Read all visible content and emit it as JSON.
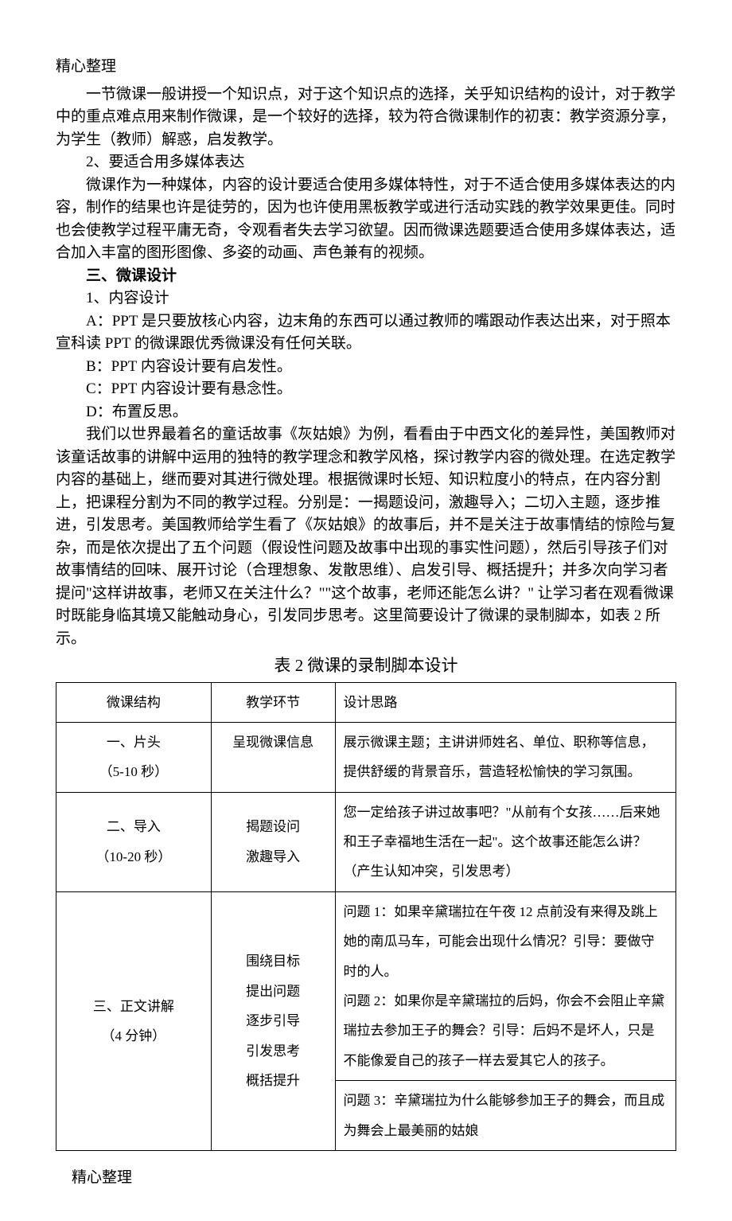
{
  "header": "精心整理",
  "footer": "精心整理",
  "paragraphs": {
    "p1": "一节微课一般讲授一个知识点，对于这个知识点的选择，关乎知识结构的设计，对于教学中的重点难点用来制作微课，是一个较好的选择，较为符合微课制作的初衷：教学资源分享，为学生（教师）解惑，启发教学。",
    "p2": "2、要适合用多媒体表达",
    "p3": "微课作为一种媒体，内容的设计要适合使用多媒体特性，对于不适合使用多媒体表达的内容，制作的结果也许是徒劳的，因为也许使用黑板教学或进行活动实践的教学效果更佳。同时也会使教学过程平庸无奇，令观看者失去学习欲望。因而微课选题要适合使用多媒体表达，适合加入丰富的图形图像、多姿的动画、声色兼有的视频。",
    "h3": "三、微课设计",
    "p4": "1、内容设计",
    "p5": "A：PPT 是只要放核心内容，边末角的东西可以通过教师的嘴跟动作表达出来，对于照本宣科读 PPT 的微课跟优秀微课没有任何关联。",
    "p6": "B：PPT 内容设计要有启发性。",
    "p7": "C：PPT 内容设计要有悬念性。",
    "p8": "D：布置反思。",
    "p9": "我们以世界最着名的童话故事《灰姑娘》为例，看看由于中西文化的差异性，美国教师对该童话故事的讲解中运用的独特的教学理念和教学风格，探讨教学内容的微处理。在选定教学内容的基础上，继而要对其进行微处理。根据微课时长短、知识粒度小的特点，在内容分割上，把课程分割为不同的教学过程。分别是：一揭题设问，激趣导入；二切入主题，逐步推进，引发思考。美国教师给学生看了《灰姑娘》的故事后，并不是关注于故事情结的惊险与复杂，而是依次提出了五个问题（假设性问题及故事中出现的事实性问题），然后引导孩子们对故事情结的回味、展开讨论（合理想象、发散思维）、启发引导、概括提升；并多次向学习者提问\"这样讲故事，老师又在关注什么？\"\"这个故事，老师还能怎么讲？\" 让学习者在观看微课时既能身临其境又能触动身心，引发同步思考。这里简要设计了微课的录制脚本，如表 2 所示。",
    "tableTitle": "表 2 微课的录制脚本设计"
  },
  "table": {
    "headers": [
      "微课结构",
      "教学环节",
      "设计思路"
    ],
    "rows": [
      {
        "c1": "一、片头\n（5-10 秒）",
        "c2": "呈现微课信息",
        "c3": "展示微课主题；主讲讲师姓名、单位、职称等信息，提供舒缓的背景音乐，营造轻松愉快的学习氛围。"
      },
      {
        "c1": "二、导入\n（10-20 秒）",
        "c2": "揭题设问\n激趣导入",
        "c3": "您一定给孩子讲过故事吧？\"从前有个女孩……后来她和王子幸福地生活在一起\"。这个故事还能怎么讲？（产生认知冲突，引发思考）"
      },
      {
        "c1": "三、正文讲解\n（4 分钟）",
        "c2": "围绕目标\n提出问题\n逐步引导\n引发思考\n概括提升",
        "c3a": "问题 1：如果辛黛瑞拉在午夜 12 点前没有来得及跳上她的南瓜马车，可能会出现什么情况？引导：要做守时的人。\n问题 2：如果你是辛黛瑞拉的后妈，你会不会阻止辛黛瑞拉去参加王子的舞会？引导：后妈不是坏人，只是不能像爱自己的孩子一样去爱其它人的孩子。",
        "c3b": "问题 3：辛黛瑞拉为什么能够参加王子的舞会，而且成为舞会上最美丽的姑娘"
      }
    ]
  }
}
